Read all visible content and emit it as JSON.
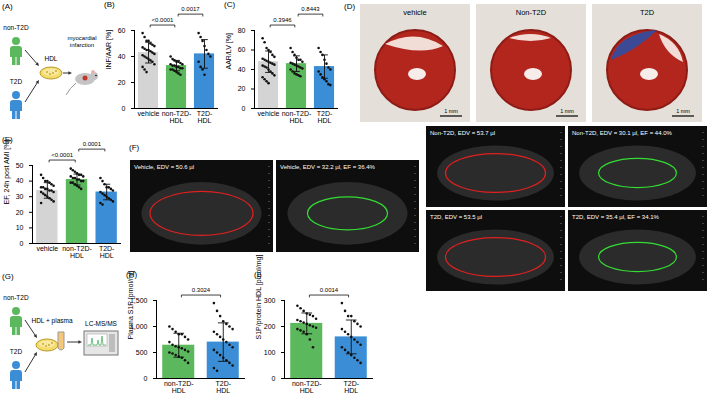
{
  "chart_data": [
    {
      "type": "bar",
      "title": "(B)",
      "y_label": "INF/AAR [%]",
      "categories": [
        "vehicle",
        "non-T2D-HDL",
        "T2D-HDL"
      ],
      "values": [
        43,
        33,
        42
      ],
      "errors": [
        8,
        4,
        11
      ],
      "points": [
        [
          58,
          55,
          52,
          52,
          50,
          49,
          48,
          47,
          46,
          45,
          45,
          44,
          43,
          42,
          41,
          40,
          39,
          38,
          37,
          36,
          34,
          32,
          30,
          28
        ],
        [
          40,
          38,
          37,
          36,
          36,
          35,
          34,
          34,
          33,
          33,
          32,
          32,
          31,
          31,
          30,
          30,
          29,
          28,
          27,
          26
        ],
        [
          58,
          55,
          52,
          48,
          45,
          42,
          40,
          36,
          32,
          30,
          26
        ]
      ],
      "colors": [
        "#d4d4d4",
        "#5cb85c",
        "#3b8ed6"
      ],
      "ylim": [
        0,
        60
      ],
      "yticks": [
        0,
        20,
        40,
        60
      ],
      "comparisons": [
        {
          "pair": [
            0,
            1
          ],
          "label": "<0.0001"
        },
        {
          "pair": [
            1,
            2
          ],
          "label": "0.0017"
        }
      ]
    },
    {
      "type": "bar",
      "title": "(C)",
      "y_label": "AAR/LV [%]",
      "categories": [
        "vehicle",
        "non-T2D-HDL",
        "T2D-HDL"
      ],
      "values": [
        48,
        46,
        43
      ],
      "errors": [
        11,
        8,
        12
      ],
      "points": [
        [
          72,
          68,
          62,
          60,
          58,
          55,
          53,
          51,
          50,
          49,
          48,
          47,
          46,
          45,
          44,
          43,
          42,
          40,
          38,
          36,
          34,
          32,
          30,
          28,
          26
        ],
        [
          62,
          58,
          55,
          52,
          50,
          50,
          48,
          47,
          46,
          45,
          44,
          43,
          42,
          41,
          40,
          38,
          36,
          35,
          34,
          33
        ],
        [
          62,
          58,
          55,
          50,
          46,
          42,
          40,
          38,
          35,
          32,
          30,
          28,
          25,
          24
        ]
      ],
      "colors": [
        "#d4d4d4",
        "#5cb85c",
        "#3b8ed6"
      ],
      "ylim": [
        0,
        80
      ],
      "yticks": [
        0,
        20,
        40,
        60,
        80
      ],
      "comparisons": [
        {
          "pair": [
            0,
            1
          ],
          "label": "0.3946"
        },
        {
          "pair": [
            1,
            2
          ],
          "label": "0.8443"
        }
      ]
    },
    {
      "type": "bar",
      "title": "(E)",
      "y_label": "EF, 24h post AMI [%]",
      "categories": [
        "vehicle",
        "non-T2D-HDL",
        "T2D-HDL"
      ],
      "values": [
        34,
        41,
        33
      ],
      "errors": [
        5,
        3.5,
        5
      ],
      "points": [
        [
          44,
          42,
          40,
          40,
          39,
          38,
          37,
          36,
          36,
          35,
          35,
          34,
          34,
          33,
          33,
          32,
          31,
          30,
          29,
          28,
          27,
          26
        ],
        [
          48,
          47,
          46,
          45,
          44,
          44,
          43,
          43,
          42,
          42,
          41,
          41,
          40,
          40,
          39,
          39,
          38,
          37,
          36,
          35
        ],
        [
          42,
          40,
          38,
          36,
          36,
          35,
          34,
          33,
          32,
          31,
          30,
          29,
          28,
          27,
          26,
          25
        ]
      ],
      "colors": [
        "#d4d4d4",
        "#5cb85c",
        "#3b8ed6"
      ],
      "ylim": [
        0,
        50
      ],
      "yticks": [
        0,
        10,
        20,
        30,
        40,
        50
      ],
      "comparisons": [
        {
          "pair": [
            0,
            1
          ],
          "label": "<0.0001"
        },
        {
          "pair": [
            1,
            2
          ],
          "label": "0.0001"
        }
      ]
    },
    {
      "type": "bar",
      "title": "(H)",
      "y_label": "Plasma S1P [pmol/ml]",
      "categories": [
        "non-T2D-HDL",
        "T2D-HDL"
      ],
      "values": [
        640,
        700
      ],
      "errors": [
        230,
        370
      ],
      "points": [
        [
          1000,
          950,
          900,
          850,
          850,
          800,
          750,
          700,
          650,
          620,
          600,
          580,
          550,
          520,
          500,
          480,
          450,
          420,
          400,
          350,
          300
        ],
        [
          1450,
          1300,
          1200,
          1100,
          1050,
          1000,
          950,
          900,
          850,
          800,
          750,
          700,
          650,
          600,
          550,
          500,
          450,
          400,
          350,
          300,
          250,
          200,
          150
        ]
      ],
      "colors": [
        "#5cb85c",
        "#3b8ed6"
      ],
      "ylim": [
        0,
        1500
      ],
      "yticks": [
        0,
        500,
        1000,
        1500
      ],
      "comparisons": [
        {
          "pair": [
            0,
            1
          ],
          "label": "0.3024"
        }
      ]
    },
    {
      "type": "bar",
      "title": "(I)",
      "y_label": "S1P/protein HDL [pmol/mg]",
      "categories": [
        "non-T2D-HDL",
        "T2D-HDL"
      ],
      "values": [
        212,
        160
      ],
      "errors": [
        40,
        65
      ],
      "points": [
        [
          280,
          270,
          260,
          250,
          245,
          240,
          230,
          225,
          220,
          215,
          210,
          205,
          200,
          195,
          190,
          185,
          180,
          170,
          150,
          120
        ],
        [
          290,
          260,
          240,
          240,
          220,
          210,
          200,
          190,
          180,
          170,
          160,
          150,
          140,
          130,
          120,
          110,
          100,
          90,
          80,
          70,
          60
        ]
      ],
      "colors": [
        "#5cb85c",
        "#3b8ed6"
      ],
      "ylim": [
        0,
        300
      ],
      "yticks": [
        0,
        100,
        200,
        300
      ],
      "comparisons": [
        {
          "pair": [
            0,
            1
          ],
          "label": "0.0014"
        }
      ]
    }
  ],
  "panel_A": {
    "title": "(A)",
    "groups": [
      "non-T2D",
      "T2D"
    ],
    "sample": "HDL",
    "model": "myocardial infarction"
  },
  "panel_D": {
    "title": "(D)",
    "images": [
      "vehicle",
      "Non-T2D",
      "T2D"
    ],
    "scale_bar": "1 mm"
  },
  "panel_F": {
    "title": "(F)",
    "images": [
      "Vehicle, EDV = 50.6 µl",
      "Vehicle, EDV = 32.2 µl, EF = 36.4%",
      "Non-T2D, EDV = 53.7 µl",
      "Non-T2D, EDV = 30.1 µl, EF = 44.0%",
      "T2D, EDV = 53.5 µl",
      "T2D, EDV = 35.4 µl, EF = 34.1%"
    ]
  },
  "panel_G": {
    "title": "(G)",
    "groups": [
      "non-T2D",
      "T2D"
    ],
    "sample": "HDL + plasma",
    "method": "LC-MS/MS"
  }
}
